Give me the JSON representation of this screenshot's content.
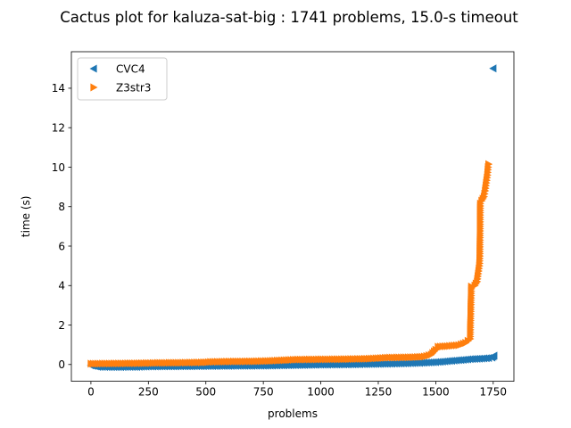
{
  "chart_data": {
    "type": "scatter",
    "title": "Cactus plot for kaluza-sat-big : 1741 problems, 15.0-s timeout",
    "xlabel": "problems",
    "ylabel": "time (s)",
    "xlim": [
      -85,
      1840
    ],
    "ylim": [
      -0.85,
      15.85
    ],
    "xticks": [
      0,
      250,
      500,
      750,
      1000,
      1250,
      1500,
      1750
    ],
    "yticks": [
      0,
      2,
      4,
      6,
      8,
      10,
      12,
      14
    ],
    "grid": false,
    "legend_position": "upper-left",
    "series": [
      {
        "name": "CVC4",
        "color": "#1f77b4",
        "marker": "triangle-left",
        "points": [
          [
            0,
            -0.05
          ],
          [
            30,
            -0.12
          ],
          [
            100,
            -0.13
          ],
          [
            200,
            -0.12
          ],
          [
            250,
            -0.1
          ],
          [
            400,
            -0.09
          ],
          [
            500,
            -0.08
          ],
          [
            600,
            -0.07
          ],
          [
            750,
            -0.06
          ],
          [
            900,
            -0.03
          ],
          [
            1000,
            -0.01
          ],
          [
            1100,
            0.0
          ],
          [
            1200,
            0.02
          ],
          [
            1300,
            0.04
          ],
          [
            1400,
            0.07
          ],
          [
            1450,
            0.09
          ],
          [
            1500,
            0.12
          ],
          [
            1550,
            0.17
          ],
          [
            1600,
            0.22
          ],
          [
            1650,
            0.27
          ],
          [
            1700,
            0.3
          ],
          [
            1730,
            0.33
          ],
          [
            1745,
            0.35
          ],
          [
            1750,
            0.4
          ],
          [
            1754,
            0.45
          ],
          [
            1750,
            15.0
          ]
        ]
      },
      {
        "name": "Z3str3",
        "color": "#ff7f0e",
        "marker": "triangle-right",
        "points": [
          [
            0,
            0.04
          ],
          [
            100,
            0.05
          ],
          [
            200,
            0.06
          ],
          [
            300,
            0.08
          ],
          [
            400,
            0.09
          ],
          [
            500,
            0.11
          ],
          [
            520,
            0.13
          ],
          [
            600,
            0.15
          ],
          [
            700,
            0.16
          ],
          [
            780,
            0.18
          ],
          [
            850,
            0.22
          ],
          [
            900,
            0.25
          ],
          [
            1000,
            0.26
          ],
          [
            1100,
            0.27
          ],
          [
            1200,
            0.29
          ],
          [
            1250,
            0.32
          ],
          [
            1300,
            0.35
          ],
          [
            1400,
            0.37
          ],
          [
            1450,
            0.4
          ],
          [
            1480,
            0.5
          ],
          [
            1500,
            0.75
          ],
          [
            1510,
            0.9
          ],
          [
            1550,
            0.93
          ],
          [
            1600,
            0.98
          ],
          [
            1630,
            1.1
          ],
          [
            1650,
            1.3
          ],
          [
            1655,
            3.95
          ],
          [
            1670,
            4.0
          ],
          [
            1680,
            4.2
          ],
          [
            1685,
            4.6
          ],
          [
            1690,
            5.0
          ],
          [
            1692,
            5.5
          ],
          [
            1694,
            8.15
          ],
          [
            1700,
            8.3
          ],
          [
            1710,
            8.5
          ],
          [
            1715,
            8.8
          ],
          [
            1720,
            9.2
          ],
          [
            1725,
            9.6
          ],
          [
            1728,
            10.0
          ],
          [
            1730,
            10.15
          ]
        ]
      }
    ]
  }
}
